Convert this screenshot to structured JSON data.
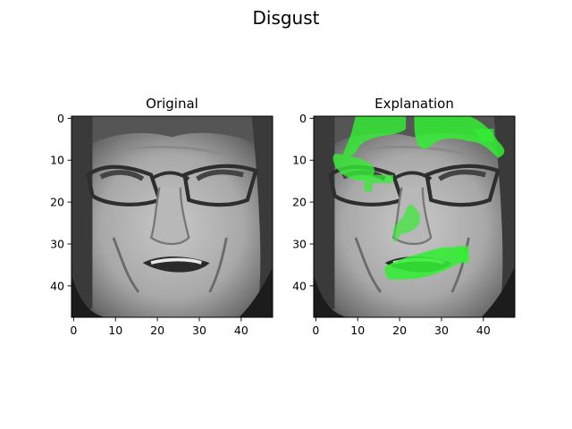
{
  "chart_data": {
    "type": "image",
    "title": "Disgust",
    "panels": [
      {
        "title": "Original",
        "content": "grayscale face image",
        "x_ticks": [
          0,
          10,
          20,
          30,
          40
        ],
        "y_ticks": [
          0,
          10,
          20,
          30,
          40
        ],
        "xlim": [
          -0.5,
          47.5
        ],
        "ylim": [
          47.5,
          -0.5
        ],
        "image_size": [
          48,
          48
        ]
      },
      {
        "title": "Explanation",
        "content": "grayscale face image with green highlighted regions",
        "x_ticks": [
          0,
          10,
          20,
          30,
          40
        ],
        "y_ticks": [
          0,
          10,
          20,
          30,
          40
        ],
        "xlim": [
          -0.5,
          47.5
        ],
        "ylim": [
          47.5,
          -0.5
        ],
        "image_size": [
          48,
          48
        ],
        "highlight_color": "#33ee33"
      }
    ]
  }
}
